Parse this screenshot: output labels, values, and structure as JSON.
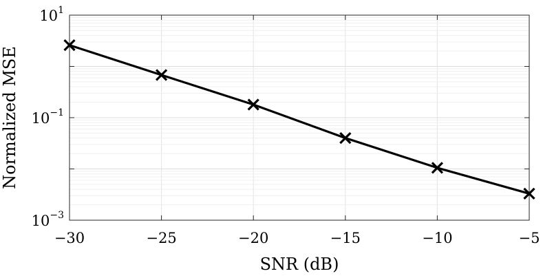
{
  "chart_data": {
    "type": "line",
    "xlabel": "SNR (dB)",
    "ylabel": "Normalized MSE",
    "x": [
      -30,
      -25,
      -20,
      -15,
      -10,
      -5
    ],
    "series": [
      {
        "values": [
          2.6,
          0.68,
          0.18,
          0.04,
          0.0105,
          0.0033
        ],
        "color": "#000000",
        "marker": "x"
      }
    ],
    "xlim": [
      -30,
      -5
    ],
    "ylim": [
      0.001,
      10
    ],
    "yscale": "log",
    "xticks": [
      "−30",
      "−25",
      "−20",
      "−15",
      "−10",
      "−5"
    ],
    "yticks": [
      {
        "base": "10",
        "exp": "1"
      },
      {
        "base": "10",
        "exp": "−1"
      },
      {
        "base": "10",
        "exp": "−3"
      }
    ],
    "grid": true
  }
}
